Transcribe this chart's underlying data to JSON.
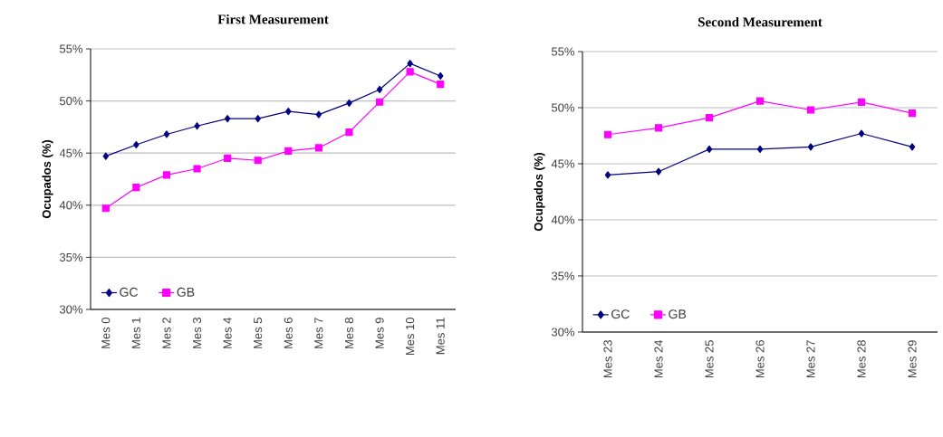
{
  "chart_data": [
    {
      "type": "line",
      "title": "First Measurement",
      "ylabel": "Ocupados (%)",
      "categories": [
        "Mes 0",
        "Mes 1",
        "Mes 2",
        "Mes 3",
        "Mes 4",
        "Mes 5",
        "Mes 6",
        "Mes 7",
        "Mes 8",
        "Mes 9",
        "Mes 10",
        "Mes 11"
      ],
      "series": [
        {
          "name": "GC",
          "color": "#000080",
          "marker": "diamond",
          "values": [
            44.7,
            45.8,
            46.8,
            47.6,
            48.3,
            48.3,
            49.0,
            48.7,
            49.8,
            51.1,
            53.6,
            52.4
          ]
        },
        {
          "name": "GB",
          "color": "#ff00ff",
          "marker": "square",
          "values": [
            39.7,
            41.7,
            42.9,
            43.5,
            44.5,
            44.3,
            45.2,
            45.5,
            47.0,
            49.9,
            52.8,
            51.6
          ]
        }
      ],
      "ylim": [
        30,
        55
      ],
      "yticks": [
        {
          "value": 30,
          "label": "30%"
        },
        {
          "value": 35,
          "label": "35%"
        },
        {
          "value": 40,
          "label": "40%"
        },
        {
          "value": 45,
          "label": "45%"
        },
        {
          "value": 50,
          "label": "50%"
        },
        {
          "value": 55,
          "label": "55%"
        }
      ],
      "grid": "y",
      "legend": "bottom left"
    },
    {
      "type": "line",
      "title": "Second Measurement",
      "ylabel": "Ocupados (%)",
      "categories": [
        "Mes 23",
        "Mes 24",
        "Mes 25",
        "Mes 26",
        "Mes 27",
        "Mes 28",
        "Mes 29"
      ],
      "series": [
        {
          "name": "GC",
          "color": "#000080",
          "marker": "diamond",
          "values": [
            44.0,
            44.3,
            46.3,
            46.3,
            46.5,
            47.7,
            46.5
          ]
        },
        {
          "name": "GB",
          "color": "#ff00ff",
          "marker": "square",
          "values": [
            47.6,
            48.2,
            49.1,
            50.6,
            49.8,
            50.5,
            49.5
          ]
        }
      ],
      "ylim": [
        30,
        55
      ],
      "yticks": [
        {
          "value": 30,
          "label": "30%"
        },
        {
          "value": 35,
          "label": "35%"
        },
        {
          "value": 40,
          "label": "40%"
        },
        {
          "value": 45,
          "label": "45%"
        },
        {
          "value": 50,
          "label": "50%"
        },
        {
          "value": 55,
          "label": "55%"
        }
      ],
      "grid": "y",
      "legend": "bottom left"
    }
  ]
}
